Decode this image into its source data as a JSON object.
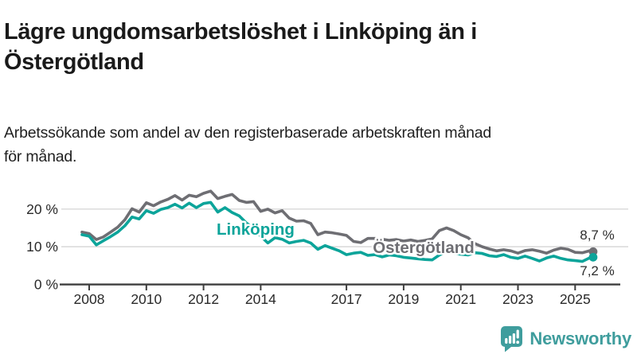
{
  "header": {
    "title_line1": "Lägre ungdomsarbetslöshet i Linköping än i",
    "title_line2": "Östergötland",
    "subtitle_line1": "Arbetssökande som andel av den registerbaserade arbetskraften månad",
    "subtitle_line2": "för månad."
  },
  "chart_data": {
    "type": "line",
    "title": "Lägre ungdomsarbetslöshet i Linköping än i Östergötland",
    "xlabel": "",
    "ylabel": "Arbetssökande som andel av den registerbaserade arbetskraften",
    "x_unit": "year (decimal = month within year)",
    "ylim": [
      0,
      26.5
    ],
    "xlim": [
      2007.7,
      2026
    ],
    "grid": "horizontal",
    "legend_position": "inline-labels",
    "y_ticks": [
      {
        "value": 0,
        "label": "0 %"
      },
      {
        "value": 10,
        "label": "10 %"
      },
      {
        "value": 20,
        "label": "20 %"
      }
    ],
    "x_ticks": [
      {
        "value": 2008,
        "label": "2008"
      },
      {
        "value": 2010,
        "label": "2010"
      },
      {
        "value": 2012,
        "label": "2012"
      },
      {
        "value": 2014,
        "label": "2014"
      },
      {
        "value": 2017,
        "label": "2017"
      },
      {
        "value": 2019,
        "label": "2019"
      },
      {
        "value": 2021,
        "label": "2021"
      },
      {
        "value": 2023,
        "label": "2023"
      },
      {
        "value": 2025,
        "label": "2025"
      }
    ],
    "x": [
      2007.75,
      2008.0,
      2008.25,
      2008.5,
      2008.75,
      2009.0,
      2009.25,
      2009.5,
      2009.75,
      2010.0,
      2010.25,
      2010.5,
      2010.75,
      2011.0,
      2011.25,
      2011.5,
      2011.75,
      2012.0,
      2012.25,
      2012.5,
      2012.75,
      2013.0,
      2013.25,
      2013.5,
      2013.75,
      2014.0,
      2014.25,
      2014.5,
      2014.75,
      2015.0,
      2015.25,
      2015.5,
      2015.75,
      2016.0,
      2016.25,
      2016.5,
      2016.75,
      2017.0,
      2017.25,
      2017.5,
      2017.75,
      2018.0,
      2018.25,
      2018.5,
      2018.75,
      2019.0,
      2019.25,
      2019.5,
      2019.75,
      2020.0,
      2020.25,
      2020.5,
      2020.75,
      2021.0,
      2021.25,
      2021.5,
      2021.75,
      2022.0,
      2022.25,
      2022.5,
      2022.75,
      2023.0,
      2023.25,
      2023.5,
      2023.75,
      2024.0,
      2024.25,
      2024.5,
      2024.75,
      2025.0,
      2025.25,
      2025.5,
      2025.63
    ],
    "series": [
      {
        "name": "Östergötland",
        "color": "#6e6e73",
        "end_label": "8,7 %",
        "end_value": 8.7,
        "values": [
          13.9,
          13.5,
          11.9,
          12.6,
          13.9,
          15.2,
          17.2,
          20.1,
          19.2,
          21.7,
          20.9,
          21.9,
          22.6,
          23.6,
          22.4,
          23.7,
          23.3,
          24.2,
          24.8,
          22.8,
          23.4,
          23.9,
          22.3,
          21.8,
          22.0,
          19.4,
          20.0,
          19.0,
          19.6,
          17.6,
          16.8,
          16.9,
          16.2,
          13.2,
          13.9,
          13.7,
          13.4,
          13.0,
          11.4,
          11.1,
          12.2,
          12.2,
          12.0,
          11.7,
          11.9,
          11.5,
          11.8,
          11.4,
          11.7,
          12.1,
          14.3,
          15.0,
          14.3,
          13.2,
          12.4,
          10.8,
          10.0,
          9.4,
          8.9,
          9.2,
          8.9,
          8.3,
          9.0,
          9.2,
          8.8,
          8.3,
          9.1,
          9.6,
          9.3,
          8.5,
          8.4,
          8.9,
          8.7
        ]
      },
      {
        "name": "Linköping",
        "color": "#0ca49a",
        "end_label": "7,2 %",
        "end_value": 7.2,
        "values": [
          13.2,
          12.8,
          10.5,
          11.6,
          12.7,
          13.9,
          15.6,
          17.9,
          17.4,
          19.6,
          18.9,
          19.9,
          20.4,
          21.3,
          20.3,
          21.6,
          20.4,
          21.5,
          21.8,
          19.2,
          20.4,
          19.1,
          18.2,
          16.3,
          15.0,
          12.8,
          11.0,
          12.4,
          12.0,
          11.0,
          11.4,
          11.7,
          11.0,
          9.3,
          10.3,
          9.6,
          8.9,
          7.9,
          8.3,
          8.5,
          7.7,
          7.9,
          7.3,
          7.8,
          7.6,
          7.2,
          7.0,
          6.8,
          6.6,
          6.5,
          7.8,
          8.6,
          8.3,
          8.0,
          7.8,
          8.4,
          8.2,
          7.6,
          7.4,
          7.9,
          7.2,
          6.9,
          7.5,
          6.9,
          6.2,
          7.0,
          7.5,
          6.9,
          6.5,
          6.3,
          6.1,
          7.0,
          7.2
        ]
      }
    ]
  },
  "colors": {
    "brand_teal": "#3f9d9d",
    "line_teal": "#0ca49a",
    "line_gray": "#6e6e73",
    "axis": "#3d3d3d",
    "grid": "#d8d8d8",
    "tick_text": "#2a2a2a",
    "value_text": "#2e2e2e"
  },
  "footer": {
    "brand_label": "Newsworthy"
  }
}
